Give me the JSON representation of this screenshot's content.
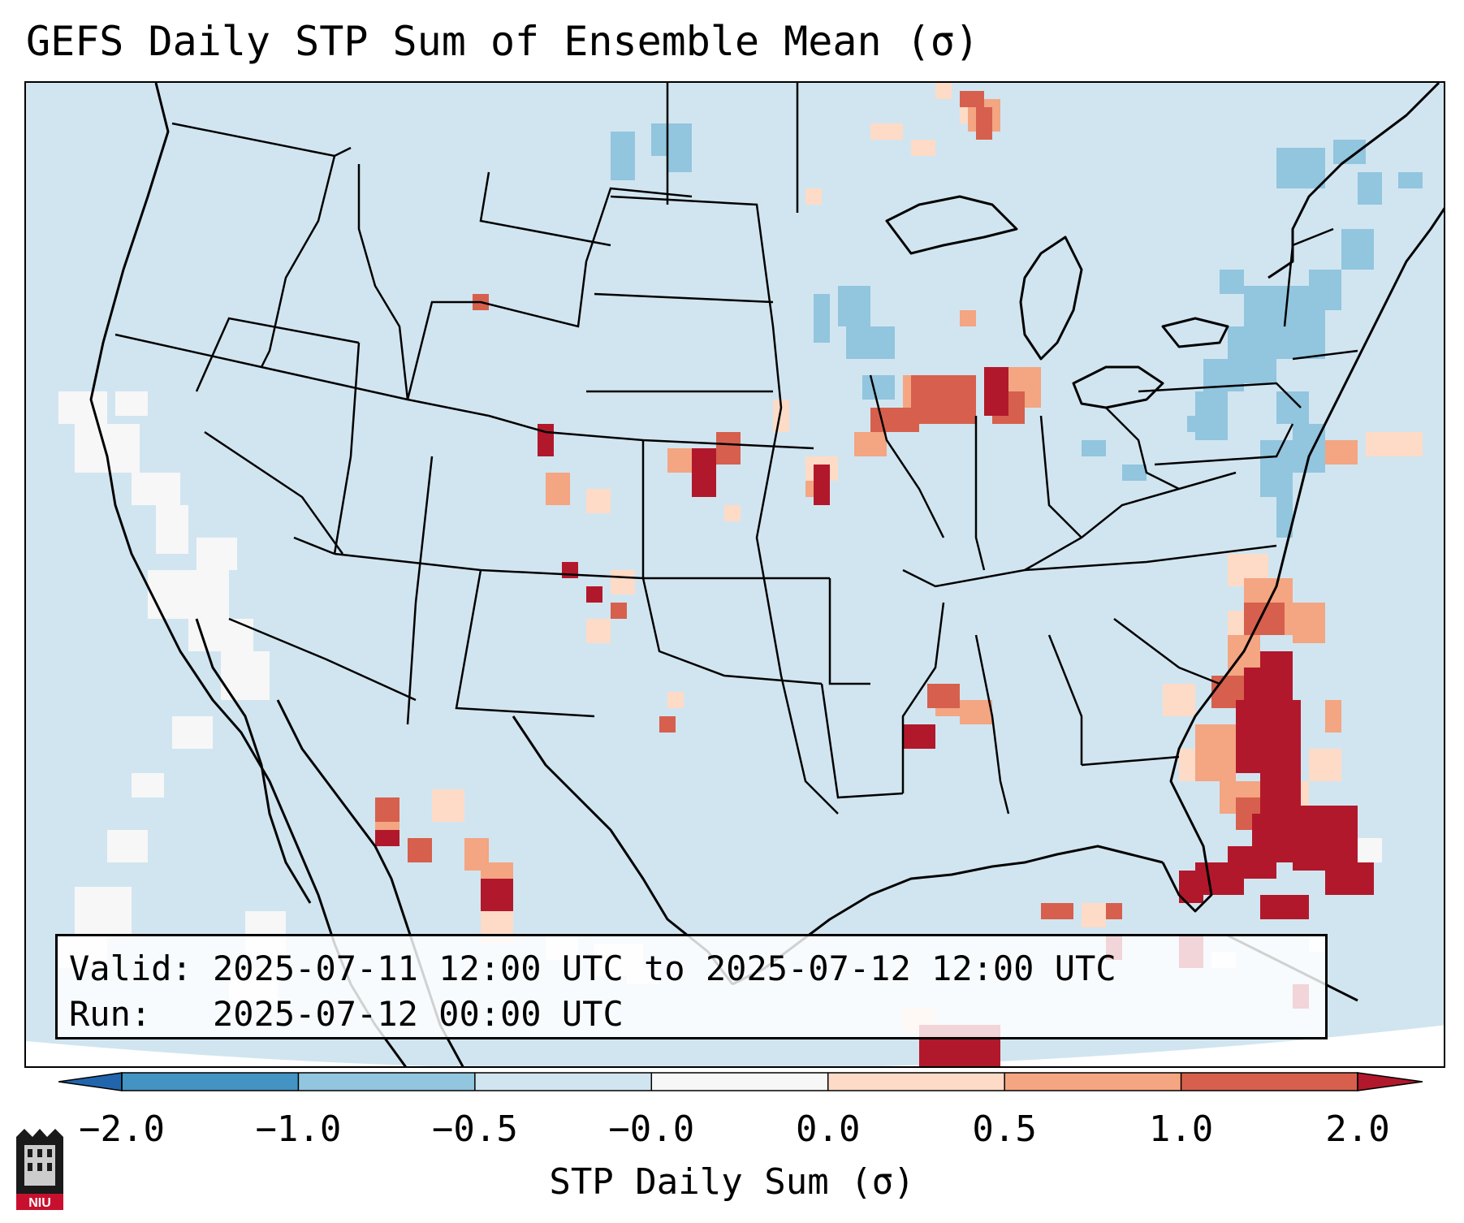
{
  "title": "GEFS Daily STP Sum of Ensemble Mean (σ)",
  "info": {
    "valid_label": "Valid:",
    "valid_value": "2025-07-11 12:00 UTC to 2025-07-12 12:00 UTC",
    "run_label": "Run:",
    "run_value": "2025-07-12 00:00 UTC"
  },
  "colorbar": {
    "label": "STP Daily Sum (σ)",
    "ticks": [
      "−2.0",
      "−1.0",
      "−0.5",
      "−0.0",
      "0.0",
      "0.5",
      "1.0",
      "2.0"
    ],
    "bins": [
      {
        "from": -2.0,
        "to": -1.0,
        "color": "#4393c3"
      },
      {
        "from": -1.0,
        "to": -0.5,
        "color": "#92c5de"
      },
      {
        "from": -0.5,
        "to": -0.0,
        "color": "#d1e5f0"
      },
      {
        "from": -0.0,
        "to": 0.0,
        "color": "#f7f7f7"
      },
      {
        "from": 0.0,
        "to": 0.5,
        "color": "#fddbc7"
      },
      {
        "from": 0.5,
        "to": 1.0,
        "color": "#f4a582"
      },
      {
        "from": 1.0,
        "to": 2.0,
        "color": "#d6604d"
      }
    ],
    "under_color": "#2166ac",
    "over_color": "#b2182b",
    "extend": "both"
  },
  "map": {
    "region": "Contiguous United States",
    "background_color": "#d1e5f0",
    "anomaly_areas": [
      {
        "region": "Florida and western Atlantic",
        "sigma": 2.0
      },
      {
        "region": "Carolina coast",
        "sigma": 1.5
      },
      {
        "region": "Northern Illinois / Lake Michigan",
        "sigma": 1.5
      },
      {
        "region": "Nebraska",
        "sigma": 2.0
      },
      {
        "region": "Iowa / Missouri border",
        "sigma": 1.5
      },
      {
        "region": "Northwest Mexico",
        "sigma": 1.5
      },
      {
        "region": "Mississippi",
        "sigma": 1.2
      },
      {
        "region": "Northeast US",
        "sigma": -0.7
      },
      {
        "region": "Pacific offshore",
        "sigma": 0.0
      }
    ]
  },
  "logo_text": "NIU"
}
